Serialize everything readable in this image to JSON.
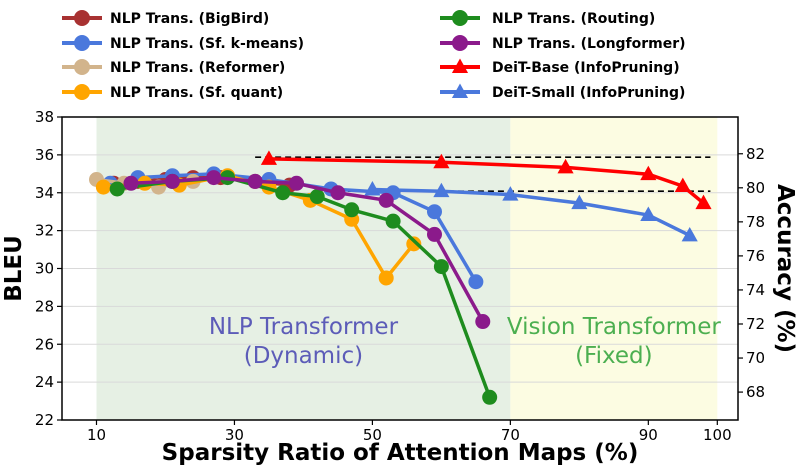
{
  "chart_data": {
    "type": "line",
    "xlabel": "Sparsity Ratio of Attention Maps (%)",
    "ylabel": "BLEU",
    "y2label": "Accuracy (%)",
    "xlim": [
      5,
      103
    ],
    "ylim": [
      22,
      38
    ],
    "y2lim": [
      66.36,
      84.16
    ],
    "xticks": [
      10,
      30,
      50,
      70,
      90,
      100
    ],
    "yticks": [
      22,
      24,
      26,
      28,
      30,
      32,
      34,
      36,
      38
    ],
    "y2ticks": [
      68,
      70,
      72,
      74,
      76,
      78,
      80,
      82
    ],
    "regions": [
      {
        "name": "nlp",
        "x_start": 10,
        "x_end": 70,
        "label_line1": "NLP Transformer",
        "label_line2": "(Dynamic)",
        "fill": "#e6f0e4",
        "text_color": "#5c5cb8"
      },
      {
        "name": "vision",
        "x_start": 70,
        "x_end": 100,
        "label_line1": "Vision Transformer",
        "label_line2": "(Fixed)",
        "fill": "#fcfce2",
        "text_color": "#4caf50"
      }
    ],
    "reference_lines": [
      {
        "name": "deit-base-baseline",
        "axis": "y2",
        "y": 81.8,
        "x_start": 33,
        "x_end": 99
      },
      {
        "name": "deit-small-baseline",
        "axis": "y2",
        "y": 79.8,
        "x_start": 45,
        "x_end": 99
      }
    ],
    "series": [
      {
        "name": "NLP Trans.  (BigBird)",
        "axis": "y",
        "color": "#a83232",
        "marker": "circle",
        "x": [
          12.5,
          16,
          20,
          24,
          28,
          33,
          38
        ],
        "y": [
          34.5,
          34.6,
          34.7,
          34.8,
          34.8,
          34.6,
          34.4
        ]
      },
      {
        "name": "NLP Trans.  (Sf. k-means)",
        "axis": "y",
        "color": "#4a78dc",
        "marker": "circle",
        "x": [
          12,
          16,
          21,
          27,
          35,
          44,
          53,
          59,
          65
        ],
        "y": [
          34.5,
          34.8,
          34.9,
          35.0,
          34.7,
          34.2,
          34.0,
          33.0,
          29.3
        ]
      },
      {
        "name": "NLP Trans.  (Reformer)",
        "axis": "y",
        "color": "#d2b48c",
        "marker": "circle",
        "x": [
          10,
          14,
          19,
          24
        ],
        "y": [
          34.7,
          34.5,
          34.3,
          34.6
        ]
      },
      {
        "name": "NLP Trans.  (Sf. quant)",
        "axis": "y",
        "color": "#ffa500",
        "marker": "circle",
        "x": [
          11,
          17,
          22,
          29,
          35,
          41,
          47,
          52,
          56
        ],
        "y": [
          34.3,
          34.5,
          34.4,
          34.9,
          34.3,
          33.6,
          32.6,
          29.5,
          31.3
        ]
      },
      {
        "name": "NLP Trans.  (Routing)",
        "axis": "y",
        "color": "#1e8c1e",
        "marker": "circle",
        "x": [
          13,
          21,
          29,
          37,
          42,
          47,
          53,
          60,
          67
        ],
        "y": [
          34.2,
          34.6,
          34.8,
          34.0,
          33.8,
          33.1,
          32.5,
          30.1,
          23.2
        ]
      },
      {
        "name": "NLP Trans.  (Longformer)",
        "axis": "y",
        "color": "#8b1a8b",
        "marker": "circle",
        "x": [
          15,
          21,
          27,
          33,
          39,
          45,
          52,
          59,
          66
        ],
        "y": [
          34.5,
          34.6,
          34.8,
          34.6,
          34.5,
          34.0,
          33.6,
          31.8,
          27.2
        ]
      },
      {
        "name": "DeiT-Base (InfoPruning)",
        "axis": "y2",
        "color": "#ff0000",
        "marker": "triangle",
        "x": [
          35,
          60,
          78,
          90,
          95,
          98
        ],
        "y": [
          81.7,
          81.5,
          81.2,
          80.8,
          80.1,
          79.1
        ]
      },
      {
        "name": "DeiT-Small (InfoPruning)",
        "axis": "y2",
        "color": "#4a78dc",
        "marker": "triangle",
        "x": [
          50,
          60,
          70,
          80,
          90,
          96
        ],
        "y": [
          79.9,
          79.8,
          79.6,
          79.1,
          78.4,
          77.2
        ]
      }
    ]
  }
}
